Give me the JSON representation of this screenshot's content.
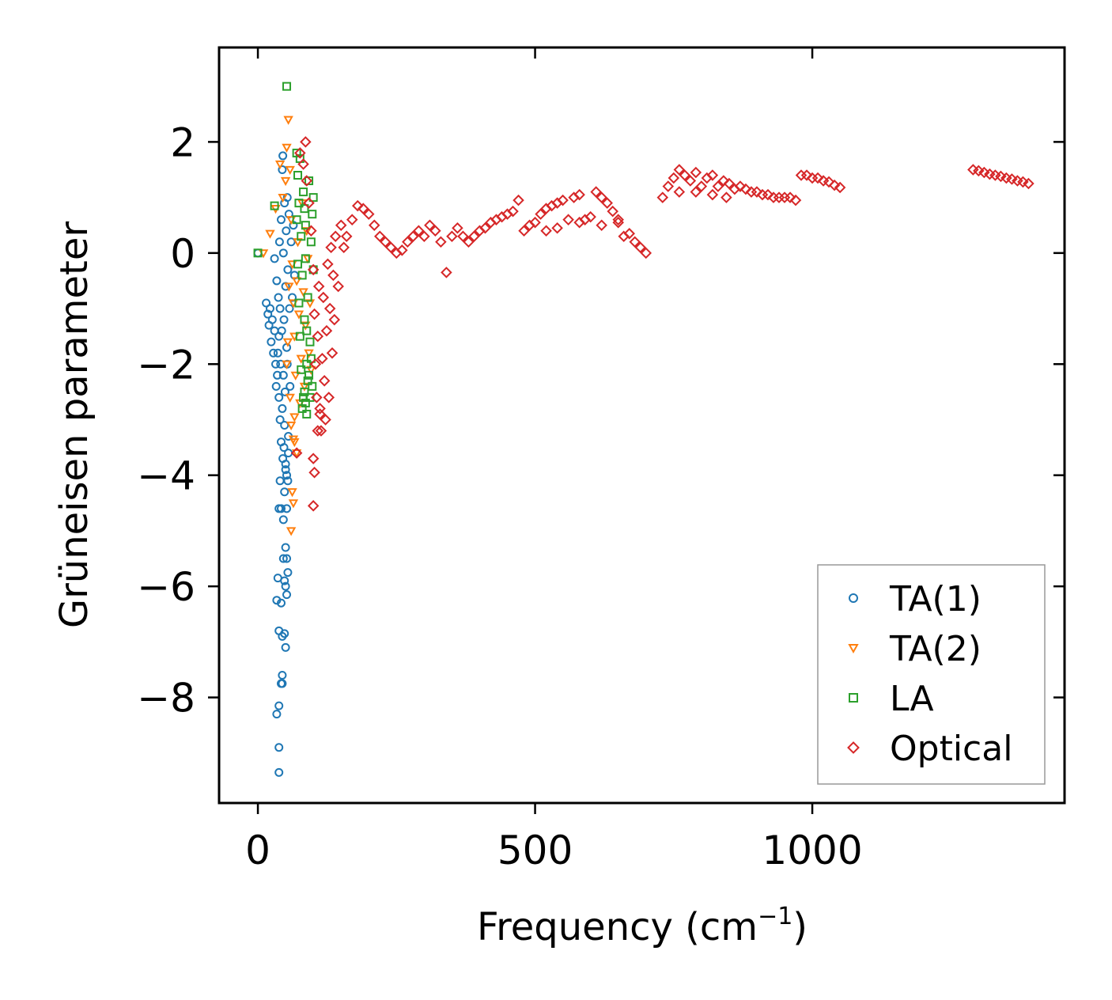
{
  "chart_data": {
    "type": "scatter",
    "title": "",
    "xlabel": "Frequency (cm",
    "xlabel_sup": "−1",
    "xlabel_end": ")",
    "ylabel": "Grüneisen parameter",
    "xlim": [
      -70,
      1455
    ],
    "ylim": [
      -9.9,
      3.7
    ],
    "xticks": [
      0,
      500,
      1000
    ],
    "xtick_labels": [
      "0",
      "500",
      "1000"
    ],
    "yticks": [
      2,
      0,
      -2,
      -4,
      -6,
      -8
    ],
    "ytick_labels": [
      "2",
      "0",
      "−2",
      "−4",
      "−6",
      "−8"
    ],
    "grid": false,
    "legend_position": "lower-right",
    "series": [
      {
        "name": "TA(1)",
        "color": "#1f77b4",
        "marker": "circle",
        "points": [
          [
            0,
            0
          ],
          [
            15,
            -0.9
          ],
          [
            18,
            -1.1
          ],
          [
            20,
            -1.3
          ],
          [
            22,
            -1.0
          ],
          [
            24,
            -1.6
          ],
          [
            26,
            -1.2
          ],
          [
            28,
            -1.8
          ],
          [
            30,
            -1.4
          ],
          [
            30,
            -0.1
          ],
          [
            32,
            -2.0
          ],
          [
            33,
            -2.4
          ],
          [
            34,
            -0.5
          ],
          [
            35,
            -2.2
          ],
          [
            36,
            -1.8
          ],
          [
            37,
            -0.8
          ],
          [
            38,
            -1.5
          ],
          [
            38,
            -2.6
          ],
          [
            39,
            0.2
          ],
          [
            40,
            -3.0
          ],
          [
            40,
            -1.0
          ],
          [
            41,
            -2.0
          ],
          [
            42,
            0.6
          ],
          [
            42,
            -3.4
          ],
          [
            43,
            -1.4
          ],
          [
            44,
            -2.8
          ],
          [
            44,
            1.5
          ],
          [
            45,
            -3.7
          ],
          [
            45,
            1.75
          ],
          [
            46,
            0.0
          ],
          [
            46,
            -2.2
          ],
          [
            47,
            -1.2
          ],
          [
            48,
            0.9
          ],
          [
            48,
            -3.1
          ],
          [
            49,
            -2.5
          ],
          [
            50,
            -0.6
          ],
          [
            50,
            -3.9
          ],
          [
            51,
            0.4
          ],
          [
            52,
            -1.7
          ],
          [
            53,
            1.0
          ],
          [
            53,
            -2.0
          ],
          [
            54,
            -0.3
          ],
          [
            55,
            -3.3
          ],
          [
            56,
            0.7
          ],
          [
            57,
            -1.0
          ],
          [
            58,
            -2.4
          ],
          [
            60,
            0.2
          ],
          [
            62,
            -0.8
          ],
          [
            64,
            0.5
          ],
          [
            66,
            -0.4
          ],
          [
            55,
            -3.6
          ],
          [
            50,
            -3.8
          ],
          [
            47,
            -3.5
          ],
          [
            40,
            -4.1
          ],
          [
            48,
            -4.3
          ],
          [
            52,
            -4.6
          ],
          [
            42,
            -4.6
          ],
          [
            46,
            -4.8
          ],
          [
            38,
            -4.6
          ],
          [
            54,
            -4.1
          ],
          [
            52,
            -4.0
          ],
          [
            50,
            -5.3
          ],
          [
            46,
            -5.5
          ],
          [
            52,
            -5.5
          ],
          [
            54,
            -5.75
          ],
          [
            36,
            -5.85
          ],
          [
            48,
            -5.9
          ],
          [
            50,
            -6.0
          ],
          [
            52,
            -6.15
          ],
          [
            34,
            -6.25
          ],
          [
            42,
            -6.3
          ],
          [
            38,
            -6.8
          ],
          [
            48,
            -6.85
          ],
          [
            44,
            -6.9
          ],
          [
            50,
            -7.1
          ],
          [
            44,
            -7.6
          ],
          [
            42,
            -7.75
          ],
          [
            44,
            -7.75
          ],
          [
            38,
            -8.15
          ],
          [
            34,
            -8.3
          ],
          [
            38,
            -8.9
          ],
          [
            38,
            -9.35
          ]
        ]
      },
      {
        "name": "TA(2)",
        "color": "#ff7f0e",
        "marker": "triangle-down",
        "points": [
          [
            10,
            0.0
          ],
          [
            22,
            0.35
          ],
          [
            32,
            0.8
          ],
          [
            40,
            1.6
          ],
          [
            45,
            1.0
          ],
          [
            50,
            1.3
          ],
          [
            52,
            1.9
          ],
          [
            55,
            2.4
          ],
          [
            58,
            1.5
          ],
          [
            60,
            0.6
          ],
          [
            62,
            -0.2
          ],
          [
            64,
            -0.9
          ],
          [
            66,
            -1.5
          ],
          [
            68,
            -2.2
          ],
          [
            70,
            -0.5
          ],
          [
            72,
            0.2
          ],
          [
            74,
            -1.1
          ],
          [
            76,
            -2.7
          ],
          [
            78,
            -1.9
          ],
          [
            80,
            0.9
          ],
          [
            82,
            -0.7
          ],
          [
            84,
            -2.4
          ],
          [
            86,
            -1.3
          ],
          [
            88,
            0.4
          ],
          [
            90,
            -0.1
          ],
          [
            92,
            -1.8
          ],
          [
            94,
            -0.9
          ],
          [
            96,
            -2.1
          ],
          [
            56,
            -0.6
          ],
          [
            54,
            -1.6
          ],
          [
            60,
            -3.1
          ],
          [
            64,
            -3.35
          ],
          [
            66,
            -2.95
          ],
          [
            70,
            -3.6
          ],
          [
            62,
            -4.3
          ],
          [
            64,
            -4.5
          ],
          [
            60,
            -5.0
          ],
          [
            66,
            -3.4
          ],
          [
            58,
            -2.6
          ],
          [
            52,
            -2.0
          ]
        ]
      },
      {
        "name": "LA",
        "color": "#2ca02c",
        "marker": "square",
        "points": [
          [
            0,
            0.0
          ],
          [
            30,
            0.85
          ],
          [
            52,
            3.0
          ],
          [
            70,
            1.8
          ],
          [
            72,
            1.4
          ],
          [
            74,
            0.9
          ],
          [
            76,
            1.7
          ],
          [
            78,
            0.3
          ],
          [
            80,
            -0.4
          ],
          [
            82,
            1.1
          ],
          [
            84,
            -1.2
          ],
          [
            86,
            0.5
          ],
          [
            88,
            -2.0
          ],
          [
            90,
            -0.8
          ],
          [
            92,
            1.3
          ],
          [
            94,
            -1.6
          ],
          [
            96,
            0.2
          ],
          [
            98,
            -2.4
          ],
          [
            100,
            -0.3
          ],
          [
            80,
            -2.8
          ],
          [
            82,
            -2.6
          ],
          [
            84,
            -2.5
          ],
          [
            86,
            -2.7
          ],
          [
            88,
            -2.9
          ],
          [
            90,
            -2.3
          ],
          [
            78,
            -2.1
          ],
          [
            76,
            -1.5
          ],
          [
            74,
            -0.9
          ],
          [
            72,
            -0.2
          ],
          [
            70,
            0.6
          ],
          [
            100,
            1.0
          ],
          [
            98,
            0.7
          ],
          [
            96,
            -1.9
          ],
          [
            94,
            -2.6
          ],
          [
            92,
            -2.2
          ],
          [
            88,
            -1.4
          ],
          [
            86,
            -0.1
          ],
          [
            84,
            0.8
          ]
        ]
      },
      {
        "name": "Optical",
        "color": "#d62728",
        "marker": "diamond",
        "points": [
          [
            76,
            1.8
          ],
          [
            82,
            1.6
          ],
          [
            86,
            2.0
          ],
          [
            88,
            1.3
          ],
          [
            92,
            0.9
          ],
          [
            96,
            0.4
          ],
          [
            100,
            -0.3
          ],
          [
            102,
            -1.1
          ],
          [
            104,
            -2.0
          ],
          [
            106,
            -2.6
          ],
          [
            108,
            -1.5
          ],
          [
            110,
            -0.6
          ],
          [
            112,
            -2.9
          ],
          [
            114,
            -3.2
          ],
          [
            116,
            -1.9
          ],
          [
            118,
            -0.8
          ],
          [
            120,
            -2.3
          ],
          [
            122,
            -3.0
          ],
          [
            124,
            -1.4
          ],
          [
            126,
            -0.2
          ],
          [
            128,
            -2.6
          ],
          [
            130,
            -1.0
          ],
          [
            132,
            0.1
          ],
          [
            134,
            -1.8
          ],
          [
            136,
            -0.4
          ],
          [
            138,
            -1.2
          ],
          [
            140,
            0.3
          ],
          [
            145,
            -0.6
          ],
          [
            150,
            0.5
          ],
          [
            155,
            0.1
          ],
          [
            70,
            -3.6
          ],
          [
            100,
            -3.7
          ],
          [
            102,
            -3.95
          ],
          [
            100,
            -4.55
          ],
          [
            108,
            -3.2
          ],
          [
            112,
            -2.8
          ],
          [
            160,
            0.3
          ],
          [
            170,
            0.6
          ],
          [
            180,
            0.85
          ],
          [
            190,
            0.8
          ],
          [
            200,
            0.7
          ],
          [
            210,
            0.5
          ],
          [
            220,
            0.3
          ],
          [
            230,
            0.2
          ],
          [
            240,
            0.1
          ],
          [
            250,
            0.0
          ],
          [
            260,
            0.05
          ],
          [
            270,
            0.2
          ],
          [
            280,
            0.3
          ],
          [
            290,
            0.4
          ],
          [
            300,
            0.3
          ],
          [
            310,
            0.5
          ],
          [
            320,
            0.4
          ],
          [
            330,
            0.2
          ],
          [
            340,
            -0.35
          ],
          [
            350,
            0.3
          ],
          [
            360,
            0.45
          ],
          [
            370,
            0.3
          ],
          [
            380,
            0.2
          ],
          [
            390,
            0.3
          ],
          [
            400,
            0.4
          ],
          [
            410,
            0.45
          ],
          [
            420,
            0.55
          ],
          [
            430,
            0.6
          ],
          [
            440,
            0.65
          ],
          [
            450,
            0.7
          ],
          [
            460,
            0.75
          ],
          [
            470,
            0.95
          ],
          [
            480,
            0.4
          ],
          [
            490,
            0.5
          ],
          [
            500,
            0.55
          ],
          [
            510,
            0.7
          ],
          [
            520,
            0.8
          ],
          [
            530,
            0.85
          ],
          [
            540,
            0.9
          ],
          [
            550,
            0.95
          ],
          [
            560,
            0.6
          ],
          [
            570,
            1.0
          ],
          [
            580,
            1.05
          ],
          [
            590,
            0.6
          ],
          [
            600,
            0.65
          ],
          [
            610,
            1.1
          ],
          [
            620,
            1.0
          ],
          [
            630,
            0.9
          ],
          [
            640,
            0.75
          ],
          [
            650,
            0.55
          ],
          [
            660,
            0.3
          ],
          [
            670,
            0.35
          ],
          [
            680,
            0.2
          ],
          [
            690,
            0.1
          ],
          [
            700,
            0.0
          ],
          [
            520,
            0.4
          ],
          [
            540,
            0.45
          ],
          [
            580,
            0.55
          ],
          [
            620,
            0.5
          ],
          [
            650,
            0.6
          ],
          [
            730,
            1.0
          ],
          [
            740,
            1.2
          ],
          [
            750,
            1.35
          ],
          [
            760,
            1.5
          ],
          [
            770,
            1.4
          ],
          [
            780,
            1.3
          ],
          [
            790,
            1.45
          ],
          [
            800,
            1.2
          ],
          [
            810,
            1.35
          ],
          [
            820,
            1.4
          ],
          [
            830,
            1.2
          ],
          [
            840,
            1.3
          ],
          [
            850,
            1.25
          ],
          [
            860,
            1.15
          ],
          [
            870,
            1.2
          ],
          [
            880,
            1.15
          ],
          [
            890,
            1.1
          ],
          [
            900,
            1.1
          ],
          [
            910,
            1.05
          ],
          [
            920,
            1.05
          ],
          [
            930,
            1.0
          ],
          [
            940,
            1.0
          ],
          [
            950,
            1.0
          ],
          [
            960,
            1.0
          ],
          [
            970,
            0.95
          ],
          [
            760,
            1.1
          ],
          [
            790,
            1.1
          ],
          [
            820,
            1.05
          ],
          [
            845,
            1.0
          ],
          [
            980,
            1.4
          ],
          [
            990,
            1.4
          ],
          [
            1000,
            1.35
          ],
          [
            1010,
            1.35
          ],
          [
            1020,
            1.3
          ],
          [
            1030,
            1.28
          ],
          [
            1040,
            1.22
          ],
          [
            1050,
            1.18
          ],
          [
            1290,
            1.5
          ],
          [
            1300,
            1.48
          ],
          [
            1310,
            1.45
          ],
          [
            1320,
            1.42
          ],
          [
            1330,
            1.4
          ],
          [
            1340,
            1.38
          ],
          [
            1350,
            1.35
          ],
          [
            1360,
            1.33
          ],
          [
            1370,
            1.3
          ],
          [
            1380,
            1.28
          ],
          [
            1390,
            1.25
          ]
        ]
      }
    ]
  }
}
